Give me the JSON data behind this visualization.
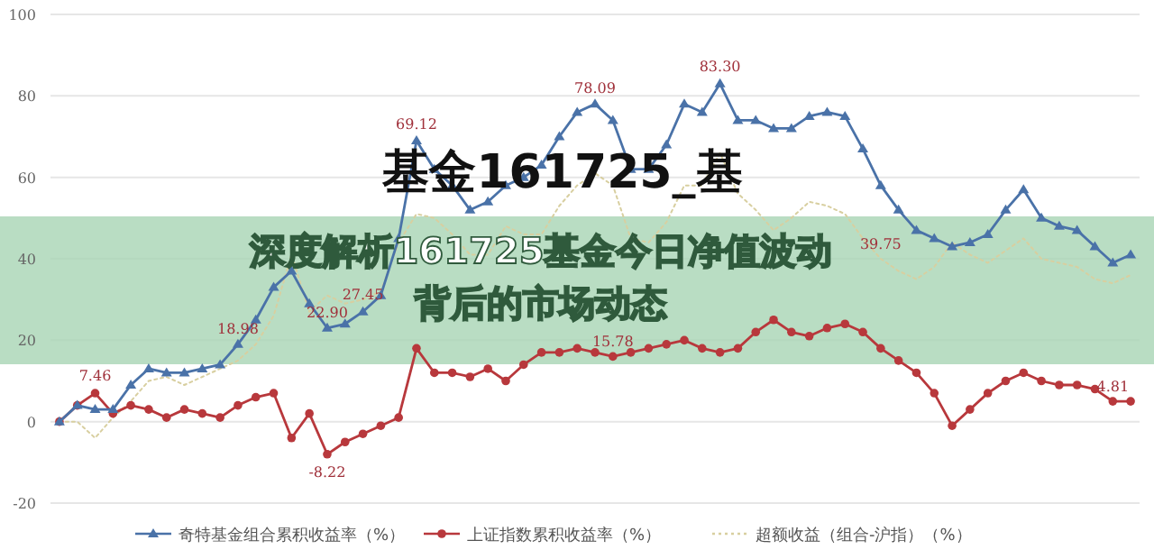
{
  "chart_data": {
    "type": "line",
    "title": "基金161725_基",
    "subtitle": "深度解析161725基金今日净值波动背后的市场动态",
    "categories": [
      null,
      null,
      null,
      null,
      null,
      null,
      null,
      null,
      null,
      null,
      null,
      null,
      null,
      null,
      null,
      null,
      null,
      null,
      null,
      null,
      null,
      null,
      null,
      null,
      null,
      null,
      null,
      null,
      null,
      null,
      null,
      null,
      null,
      null,
      null,
      null,
      null,
      null,
      null,
      null,
      null,
      null,
      null,
      null,
      null,
      null,
      null,
      null,
      null,
      null,
      null,
      null,
      null,
      null,
      null,
      null,
      null,
      null,
      null,
      null,
      null
    ],
    "series": [
      {
        "name": "奇特基金组合累积收益率（%）",
        "color": "#4a72a8",
        "marker": "triangle",
        "values": [
          0,
          4,
          3,
          3,
          9,
          13,
          12,
          12,
          13,
          14,
          19,
          25,
          33,
          37,
          29,
          23,
          24,
          27,
          31,
          45,
          69,
          62,
          58,
          52,
          54,
          58,
          60,
          63,
          70,
          76,
          78,
          74,
          62,
          62,
          68,
          78,
          76,
          83,
          74,
          74,
          72,
          72,
          75,
          76,
          75,
          67,
          58,
          52,
          47,
          45,
          43,
          44,
          46,
          52,
          57,
          50,
          48,
          47,
          43,
          39,
          41
        ]
      },
      {
        "name": "上证指数累积收益率（%）",
        "color": "#b8383c",
        "marker": "circle",
        "values": [
          0,
          4,
          7,
          2,
          4,
          3,
          1,
          3,
          2,
          1,
          4,
          6,
          7,
          -4,
          2,
          -8,
          -5,
          -3,
          -1,
          1,
          18,
          12,
          12,
          11,
          13,
          10,
          14,
          17,
          17,
          18,
          17,
          16,
          17,
          18,
          19,
          20,
          18,
          17,
          18,
          22,
          25,
          22,
          21,
          23,
          24,
          22,
          18,
          15,
          12,
          7,
          -1,
          3,
          7,
          10,
          12,
          10,
          9,
          9,
          8,
          5,
          5
        ]
      },
      {
        "name": "超额收益（组合-沪指）（%）",
        "color": "#d8cfa0",
        "marker": "none",
        "line_style": "dotted",
        "values": [
          0,
          0,
          -4,
          1,
          5,
          10,
          11,
          9,
          11,
          13,
          15,
          19,
          26,
          41,
          27,
          31,
          29,
          30,
          32,
          44,
          51,
          50,
          46,
          41,
          41,
          48,
          46,
          46,
          53,
          58,
          61,
          58,
          45,
          44,
          49,
          58,
          58,
          66,
          56,
          52,
          47,
          50,
          54,
          53,
          51,
          45,
          40,
          37,
          35,
          38,
          44,
          41,
          39,
          42,
          45,
          40,
          39,
          38,
          35,
          34,
          36
        ]
      }
    ],
    "ylim": [
      -20,
      100
    ],
    "yticks": [
      -20,
      0,
      20,
      40,
      60,
      80,
      100
    ],
    "grid": "y",
    "legend": "bottom",
    "annotations": [
      {
        "text": "69.12",
        "y": 69.12
      },
      {
        "text": "78.09",
        "y": 78.09
      },
      {
        "text": "83.30",
        "y": 83.3
      },
      {
        "text": "39.75",
        "y": 39.75
      },
      {
        "text": "7.46",
        "y": 7.46
      },
      {
        "text": "22.90",
        "y": 22.9
      },
      {
        "text": "18.98",
        "y": 18.98
      },
      {
        "text": "27.45",
        "y": 27.45
      },
      {
        "text": "15.78",
        "y": 15.78
      },
      {
        "text": "-8.22",
        "y": -8.22
      },
      {
        "text": "4.81",
        "y": 4.81
      }
    ]
  }
}
